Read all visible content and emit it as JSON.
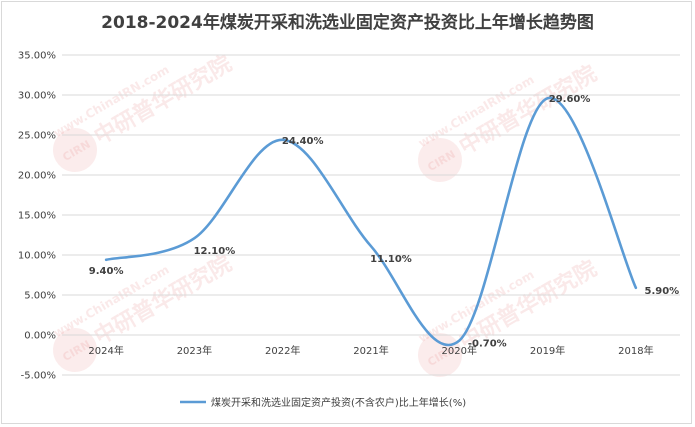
{
  "chart_data": {
    "type": "line",
    "title": "2018-2024年煤炭开采和洗选业固定资产投资比上年增长趋势图",
    "categories": [
      "2024年",
      "2023年",
      "2022年",
      "2021年",
      "2020年",
      "2019年",
      "2018年"
    ],
    "series": [
      {
        "name": "煤炭开采和洗选业固定资产投资(不含农户)比上年增长(%)",
        "values": [
          9.4,
          12.1,
          24.4,
          11.1,
          -0.7,
          29.6,
          5.9
        ],
        "labels": [
          "9.40%",
          "12.10%",
          "24.40%",
          "11.10%",
          "-0.70%",
          "29.60%",
          "5.90%"
        ],
        "color": "#5b9bd5"
      }
    ],
    "ylim": [
      -5,
      35
    ],
    "yticks": [
      "-5.00%",
      "0.00%",
      "5.00%",
      "10.00%",
      "15.00%",
      "20.00%",
      "25.00%",
      "30.00%",
      "35.00%"
    ],
    "grid": true,
    "legend_position": "bottom",
    "smooth": true
  },
  "watermark": [
    "www.ChinaIRN.com",
    "中研普华研究院",
    "CIRN"
  ]
}
